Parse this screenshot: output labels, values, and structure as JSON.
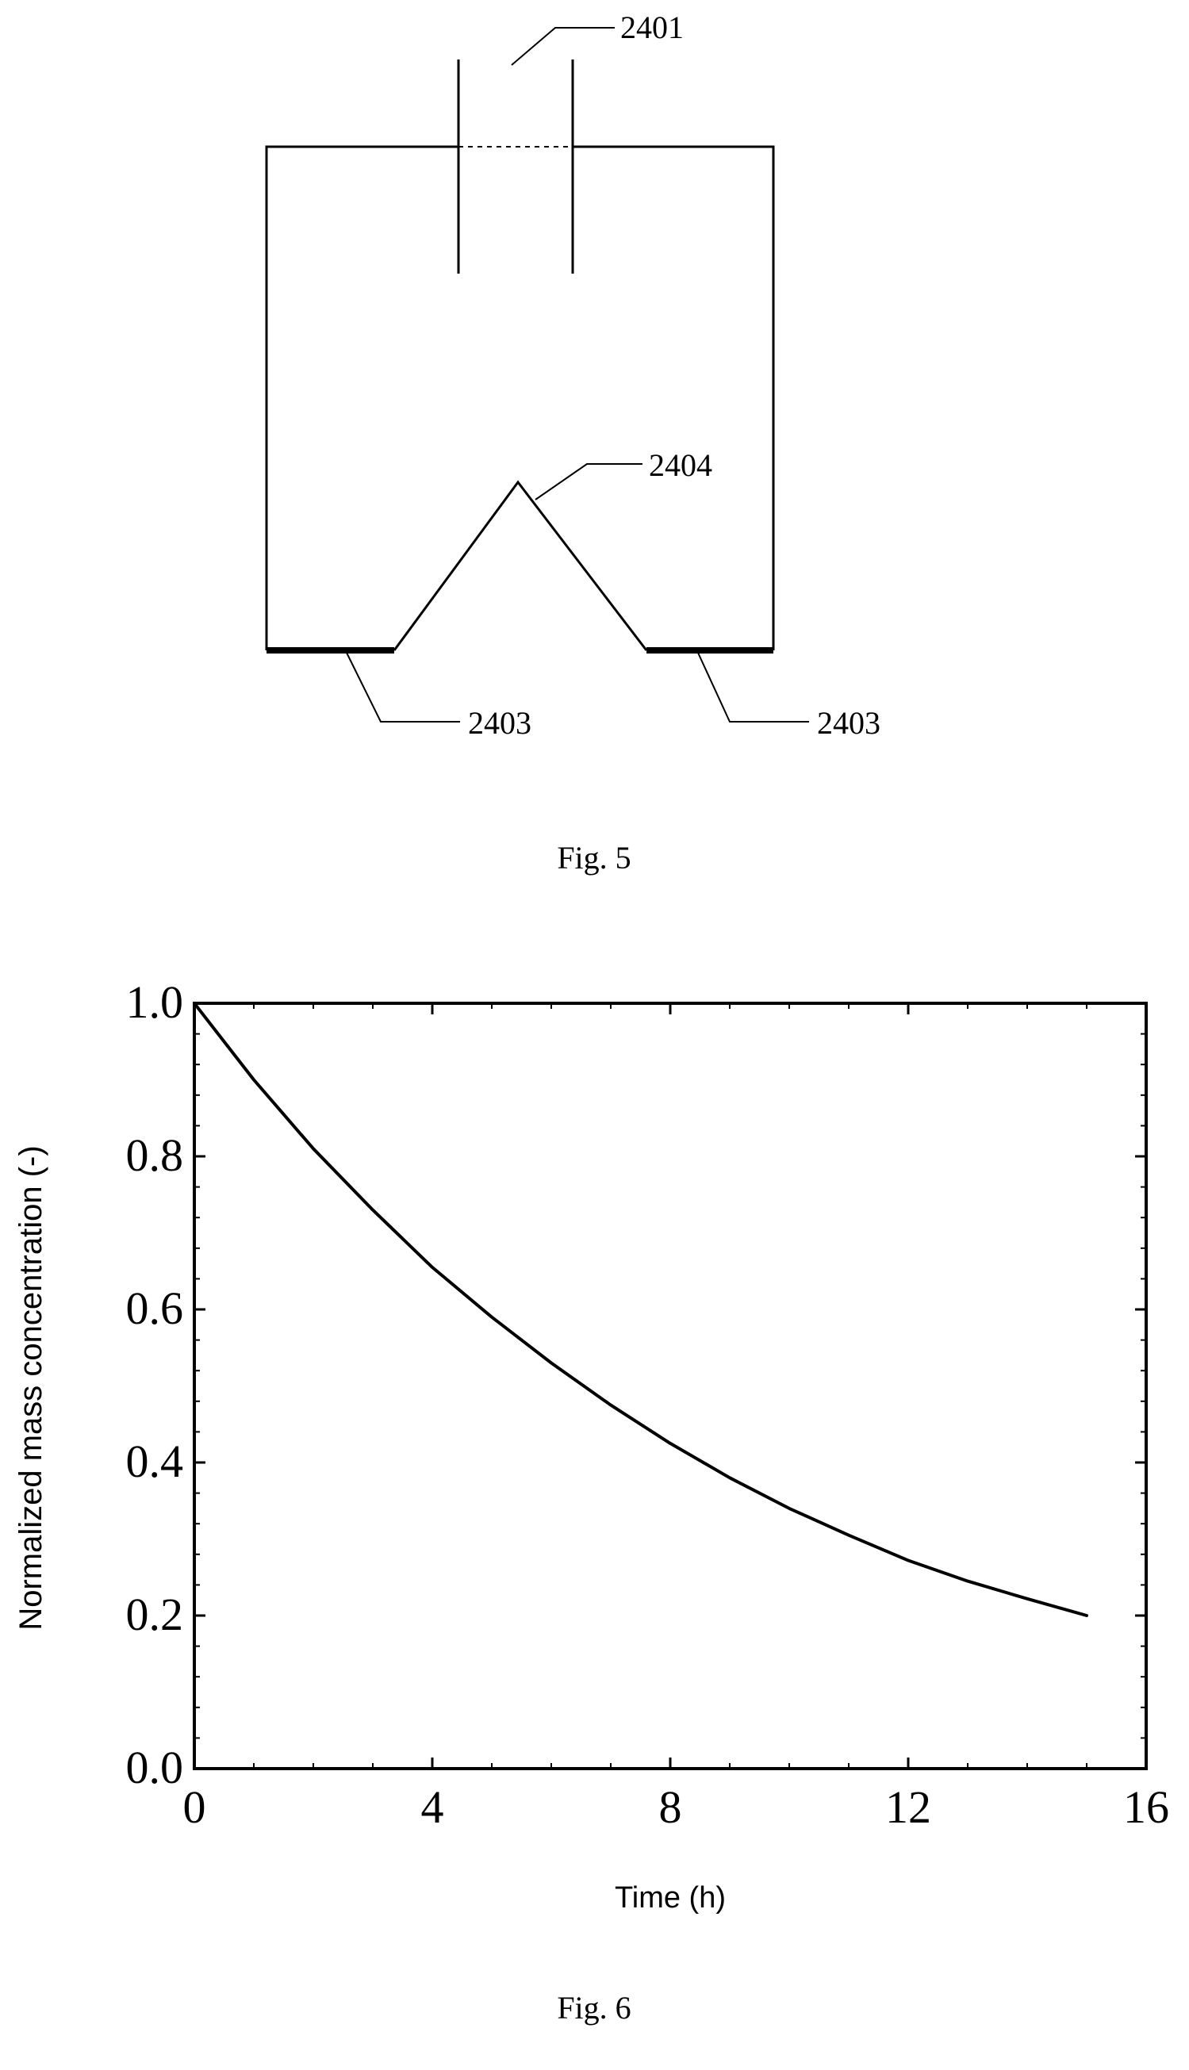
{
  "figure5": {
    "caption": "Fig. 5",
    "labels": {
      "ref_2401": "2401",
      "ref_2404": "2404",
      "ref_2403_left": "2403",
      "ref_2403_right": "2403"
    }
  },
  "figure6": {
    "caption": "Fig. 6"
  },
  "chart_data": {
    "type": "line",
    "title": "",
    "xlabel": "Time (h)",
    "ylabel": "Normalized mass concentration  (-)",
    "xlim": [
      0,
      16
    ],
    "ylim": [
      0.0,
      1.0
    ],
    "xticks": [
      "0",
      "4",
      "8",
      "12",
      "16"
    ],
    "yticks": [
      "0.0",
      "0.2",
      "0.4",
      "0.6",
      "0.8",
      "1.0"
    ],
    "grid": false,
    "series": [
      {
        "x": [
          0,
          1,
          2,
          3,
          4,
          5,
          6,
          7,
          8,
          9,
          10,
          11,
          12,
          13,
          14,
          15
        ],
        "y": [
          1.0,
          0.9,
          0.81,
          0.73,
          0.655,
          0.59,
          0.53,
          0.475,
          0.425,
          0.38,
          0.34,
          0.305,
          0.272,
          0.245,
          0.222,
          0.2
        ]
      }
    ]
  }
}
